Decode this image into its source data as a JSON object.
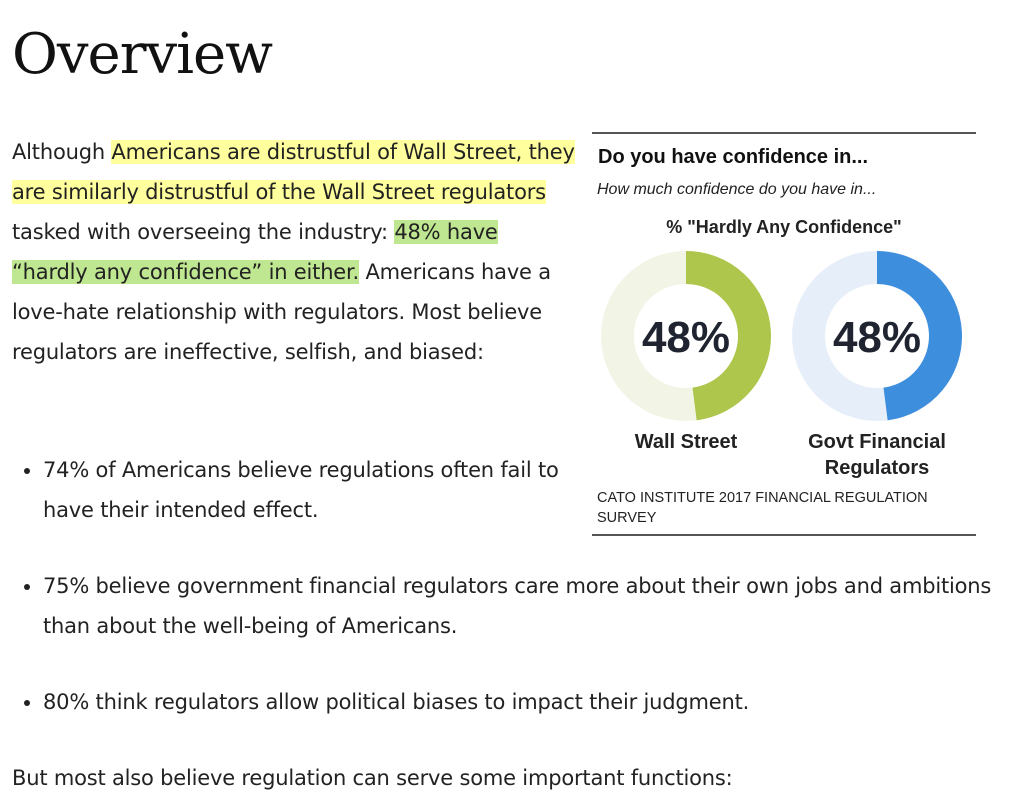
{
  "title": "Overview",
  "intro": {
    "before": "Although ",
    "hl1": "Americans are distrustful of Wall Street, they are similarly distrustful of the Wall Street regulators",
    "mid": " tasked with overseeing the industry: ",
    "hl2": "48% have “hardly any confidence” in either.",
    "after": " Americans have a love-hate relationship with regulators. Most believe regulators are ineffective, selfish, and biased:"
  },
  "bullets": [
    "74% of Americans believe regulations often fail to have their intended effect.",
    "75% believe government financial regulators care more about their own jobs and ambitions than about the well-being of Americans.",
    "80% think regulators allow political biases to impact their judgment."
  ],
  "closing": "But most also believe regulation can serve some important functions:",
  "chart_data": {
    "type": "pie",
    "title": "Do you have confidence in...",
    "subtitle": "How much confidence do you have in...",
    "measure": "% \"Hardly Any Confidence\"",
    "series": [
      {
        "name": "Wall Street",
        "value": 48,
        "label": "48%",
        "color": "#aec64c",
        "track": "#f2f5e6"
      },
      {
        "name": "Govt Financial Regulators",
        "value": 48,
        "label": "48%",
        "color": "#3e8ede",
        "track": "#e6eef9"
      }
    ],
    "source": "CATO INSTITUTE 2017 FINANCIAL REGULATION SURVEY"
  }
}
